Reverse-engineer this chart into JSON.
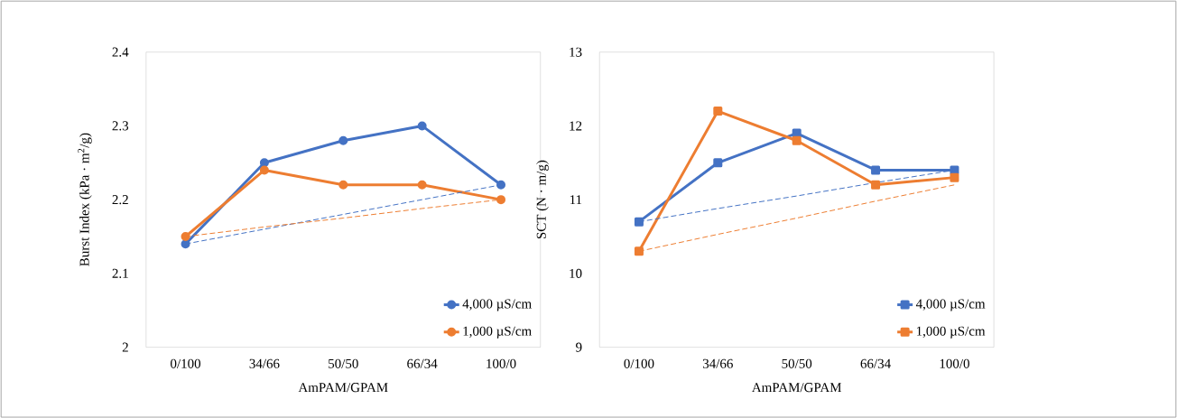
{
  "chart_data": [
    {
      "type": "line",
      "xlabel": "AmPAM/GPAM",
      "ylabel": "Burst Index (kPa · m$^{2}$/g)",
      "categories": [
        "0/100",
        "34/66",
        "50/50",
        "66/34",
        "100/0"
      ],
      "ylim": [
        2,
        2.4
      ],
      "yticks": [
        2,
        2.1,
        2.2,
        2.3,
        2.4
      ],
      "legend": "bottom right",
      "marker": "circle",
      "line_style": "solid",
      "grid": false,
      "series": [
        {
          "name": "4,000 µS/cm",
          "color": "#4472c4",
          "values": [
            2.14,
            2.25,
            2.28,
            2.3,
            2.22
          ]
        },
        {
          "name": "1,000 µS/cm",
          "color": "#ed7d31",
          "values": [
            2.15,
            2.24,
            2.22,
            2.22,
            2.2
          ]
        },
        {
          "type": "line",
          "color": "#4472c4",
          "values": [
            2.14,
            2.16,
            2.18,
            2.2,
            2.22
          ],
          "marker": "none",
          "line_style": "dashed"
        },
        {
          "type": "line",
          "color": "#ed7d31",
          "values": [
            2.15,
            2.163,
            2.175,
            2.188,
            2.2
          ],
          "marker": "none",
          "line_style": "dashed"
        }
      ]
    },
    {
      "type": "line",
      "xlabel": "AmPAM/GPAM",
      "ylabel": "SCT (N · m/g)",
      "categories": [
        "0/100",
        "34/66",
        "50/50",
        "66/34",
        "100/0"
      ],
      "ylim": [
        9,
        13
      ],
      "yticks": [
        9,
        10,
        11,
        12,
        13
      ],
      "legend": "bottom right",
      "marker": "square",
      "line_style": "solid",
      "grid": false,
      "series": [
        {
          "name": "4,000 µS/cm",
          "color": "#4472c4",
          "values": [
            10.7,
            11.5,
            11.9,
            11.4,
            11.4
          ]
        },
        {
          "name": "1,000 µS/cm",
          "color": "#ed7d31",
          "values": [
            10.3,
            12.2,
            11.8,
            11.2,
            11.3
          ]
        },
        {
          "type": "line",
          "color": "#4472c4",
          "values": [
            10.7,
            10.88,
            11.05,
            11.23,
            11.4
          ],
          "marker": "none",
          "line_style": "dashed"
        },
        {
          "type": "line",
          "color": "#ed7d31",
          "values": [
            10.3,
            10.53,
            10.75,
            10.98,
            11.2
          ],
          "marker": "none",
          "line_style": "dashed"
        }
      ]
    }
  ]
}
